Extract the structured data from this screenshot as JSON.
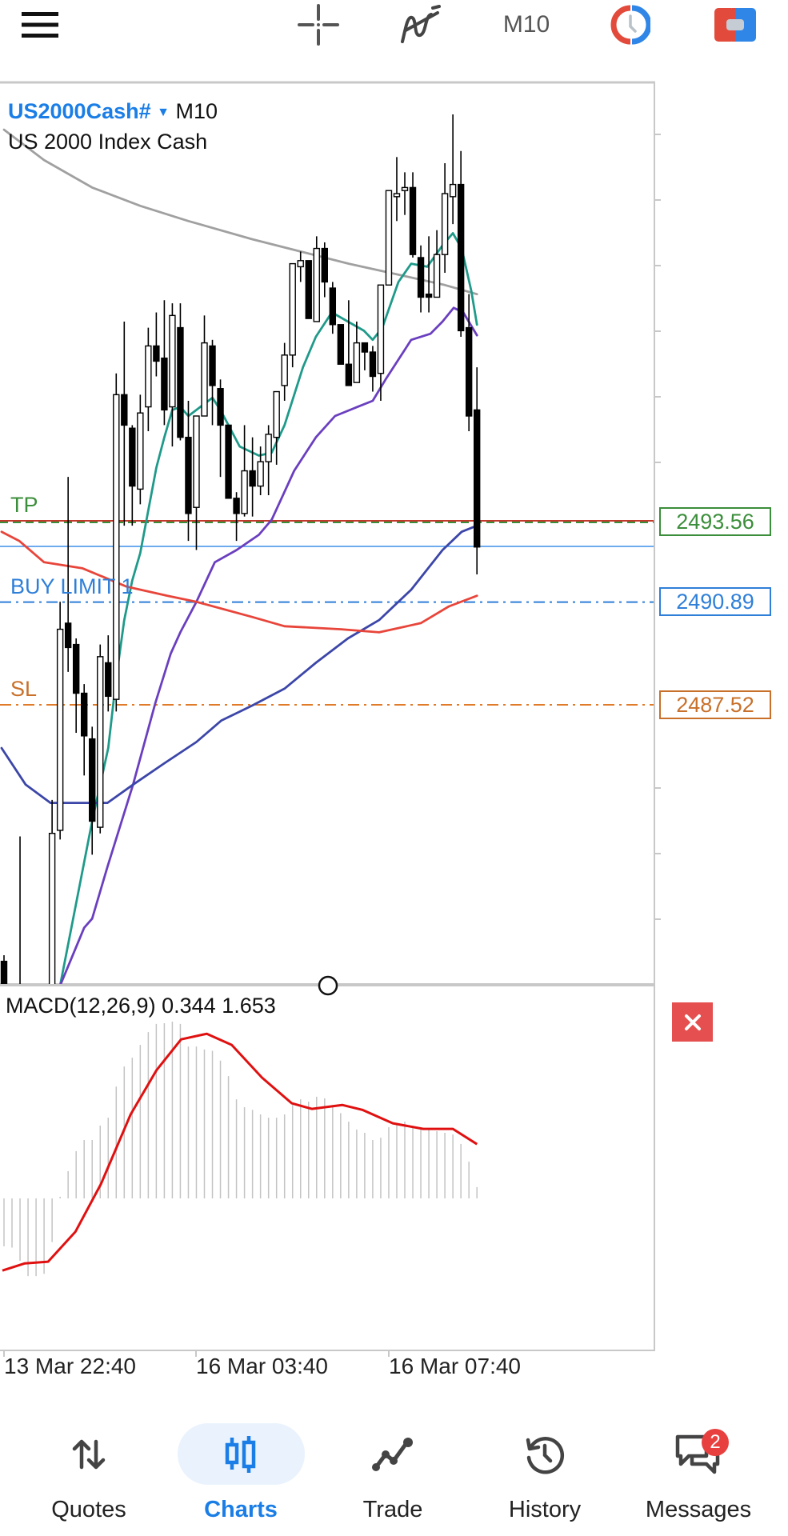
{
  "topbar": {
    "menu_icon": "hamburger-icon",
    "crosshair_icon": "crosshair-icon",
    "indicators_icon": "indicators-icon",
    "timeframe": "M10",
    "objects_icon": "clock-objects-icon",
    "trade_icon": "one-click-trade-icon"
  },
  "chart": {
    "symbol": "US2000Cash#",
    "timeframe": "M10",
    "description": "US 2000 Index Cash",
    "levels": [
      {
        "label": "TP",
        "price": "2493.56",
        "color": "#3b8e3b",
        "line_color": "#c0392b"
      },
      {
        "label": "BUY LIMIT 1",
        "price": "2490.89",
        "color": "#2f7fd8",
        "line_color": "#2f7fd8"
      },
      {
        "label": "SL",
        "price": "2487.52",
        "color": "#c8702a",
        "line_color": "#e07b2a"
      }
    ],
    "time_labels": [
      "13 Mar 22:40",
      "16 Mar 03:40",
      "16 Mar 07:40"
    ],
    "macd": {
      "label": "MACD(12,26,9)",
      "value": "0.344",
      "signal": "1.653"
    },
    "close_icon": "close-icon"
  },
  "nav": {
    "items": [
      {
        "label": "Quotes",
        "icon": "up-down-arrows-icon",
        "active": false
      },
      {
        "label": "Charts",
        "icon": "candlesticks-icon",
        "active": true
      },
      {
        "label": "Trade",
        "icon": "trade-line-icon",
        "active": false
      },
      {
        "label": "History",
        "icon": "history-icon",
        "active": false
      },
      {
        "label": "Messages",
        "icon": "messages-icon",
        "active": false
      }
    ],
    "messages_badge": "2",
    "active_color": "#1a7ee6"
  },
  "chart_data": {
    "type": "candlestick",
    "symbol": "US2000Cash#",
    "timeframe": "M10",
    "bid_line": 2492.72,
    "colors": {
      "bull": "#ffffff",
      "bear": "#000000",
      "bid_line": "#3d8fe8"
    },
    "candles": [
      [
        2479.1,
        2479.3,
        2477.8,
        2478.3
      ],
      [
        2477.0,
        2477.5,
        2476.0,
        2476.5
      ],
      [
        2478.0,
        2483.2,
        2477.0,
        2477.5
      ],
      [
        2477.0,
        2477.5,
        2476.0,
        2476.5
      ],
      [
        2477.0,
        2477.5,
        2476.0,
        2476.5
      ],
      [
        2477.0,
        2477.4,
        2476.0,
        2476.4
      ],
      [
        2477.0,
        2484.4,
        2476.5,
        2483.3
      ],
      [
        2483.4,
        2490.9,
        2483.1,
        2490.0
      ],
      [
        2490.2,
        2495.0,
        2488.6,
        2489.4
      ],
      [
        2489.5,
        2489.7,
        2486.6,
        2487.9
      ],
      [
        2487.9,
        2488.2,
        2485.2,
        2486.5
      ],
      [
        2486.4,
        2486.8,
        2482.6,
        2483.7
      ],
      [
        2483.5,
        2489.5,
        2483.3,
        2489.1
      ],
      [
        2488.9,
        2489.8,
        2487.3,
        2487.8
      ],
      [
        2487.7,
        2498.4,
        2487.3,
        2497.7
      ],
      [
        2497.7,
        2500.1,
        2493.4,
        2496.7
      ],
      [
        2496.6,
        2496.7,
        2493.4,
        2494.7
      ],
      [
        2494.6,
        2497.7,
        2494.1,
        2497.1
      ],
      [
        2497.3,
        2499.9,
        2496.5,
        2499.3
      ],
      [
        2499.3,
        2500.4,
        2498.3,
        2498.8
      ],
      [
        2498.9,
        2500.8,
        2496.7,
        2497.2
      ],
      [
        2497.3,
        2500.7,
        2496.0,
        2500.3
      ],
      [
        2499.9,
        2500.7,
        2496.2,
        2496.3
      ],
      [
        2496.3,
        2497.5,
        2492.9,
        2493.8
      ],
      [
        2494.0,
        2497.0,
        2492.6,
        2497.0
      ],
      [
        2497.0,
        2500.3,
        2497.0,
        2499.4
      ],
      [
        2499.3,
        2499.5,
        2496.7,
        2498.0
      ],
      [
        2497.9,
        2498.2,
        2495.0,
        2496.7
      ],
      [
        2496.7,
        2496.7,
        2494.3,
        2494.3
      ],
      [
        2494.3,
        2494.5,
        2492.9,
        2493.8
      ],
      [
        2493.8,
        2496.7,
        2493.7,
        2495.2
      ],
      [
        2495.2,
        2496.3,
        2493.7,
        2494.7
      ],
      [
        2494.7,
        2496.0,
        2494.4,
        2495.5
      ],
      [
        2495.5,
        2496.7,
        2494.4,
        2496.4
      ],
      [
        2496.3,
        2497.8,
        2495.4,
        2497.8
      ],
      [
        2498.0,
        2499.4,
        2497.5,
        2499.0
      ],
      [
        2499.0,
        2502.0,
        2498.6,
        2502.0
      ],
      [
        2501.9,
        2502.4,
        2501.4,
        2502.1
      ],
      [
        2502.1,
        2502.1,
        2500.2,
        2500.2
      ],
      [
        2500.1,
        2502.9,
        2500.1,
        2502.5
      ],
      [
        2502.5,
        2502.7,
        2500.9,
        2501.4
      ],
      [
        2501.2,
        2501.4,
        2499.7,
        2500.0
      ],
      [
        2500.0,
        2500.0,
        2498.7,
        2498.7
      ],
      [
        2498.7,
        2500.8,
        2498.0,
        2498.0
      ],
      [
        2498.1,
        2500.1,
        2498.1,
        2499.4
      ],
      [
        2499.4,
        2499.4,
        2498.5,
        2499.1
      ],
      [
        2499.1,
        2499.3,
        2497.8,
        2498.3
      ],
      [
        2498.4,
        2501.3,
        2497.5,
        2501.3
      ],
      [
        2501.3,
        2504.4,
        2501.3,
        2504.4
      ],
      [
        2504.2,
        2505.5,
        2503.4,
        2504.3
      ],
      [
        2504.4,
        2505.0,
        2503.6,
        2504.5
      ],
      [
        2504.5,
        2505.0,
        2502.2,
        2502.3
      ],
      [
        2502.2,
        2502.6,
        2500.4,
        2500.9
      ],
      [
        2501.0,
        2502.9,
        2500.4,
        2500.9
      ],
      [
        2500.9,
        2503.1,
        2500.9,
        2502.3
      ],
      [
        2502.3,
        2505.3,
        2501.7,
        2504.3
      ],
      [
        2504.2,
        2506.9,
        2503.3,
        2504.6
      ],
      [
        2504.6,
        2505.7,
        2499.6,
        2499.8
      ],
      [
        2499.9,
        2501.0,
        2496.5,
        2497.0
      ],
      [
        2497.2,
        2498.6,
        2491.8,
        2492.7
      ]
    ],
    "overlays": [
      {
        "color": "#a0a0a0",
        "points": [
          [
            0,
            2506.4
          ],
          [
            5,
            2505.4
          ],
          [
            11,
            2504.5
          ],
          [
            17,
            2503.9
          ],
          [
            23,
            2503.4
          ],
          [
            31,
            2502.8
          ],
          [
            37,
            2502.4
          ],
          [
            43,
            2502.0
          ],
          [
            49,
            2501.65
          ],
          [
            55,
            2501.3
          ],
          [
            59,
            2501.0
          ]
        ]
      },
      {
        "color": "#1f9a8a",
        "points": [
          [
            7,
            2478.3
          ],
          [
            11,
            2483.7
          ],
          [
            13,
            2486.1
          ],
          [
            14,
            2488.4
          ],
          [
            15,
            2490.3
          ],
          [
            16,
            2491.6
          ],
          [
            17,
            2492.5
          ],
          [
            19,
            2495.3
          ],
          [
            20,
            2496.3
          ],
          [
            21,
            2497.2
          ],
          [
            22,
            2497.3
          ],
          [
            23,
            2497.0
          ],
          [
            26,
            2497.6
          ],
          [
            27,
            2497.2
          ],
          [
            29.4,
            2496.0
          ],
          [
            31.8,
            2495.7
          ],
          [
            33.4,
            2495.8
          ],
          [
            35,
            2496.7
          ],
          [
            37.3,
            2498.6
          ],
          [
            38.9,
            2499.6
          ],
          [
            40.9,
            2500.4
          ],
          [
            42.9,
            2500.1
          ],
          [
            44.9,
            2499.8
          ],
          [
            46,
            2499.5
          ],
          [
            47.2,
            2499.9
          ],
          [
            49.2,
            2501.4
          ],
          [
            50.8,
            2502.0
          ],
          [
            52.8,
            2501.9
          ],
          [
            54.7,
            2502.6
          ],
          [
            56,
            2503.0
          ],
          [
            57.1,
            2502.5
          ],
          [
            58.3,
            2501.1
          ],
          [
            59,
            2500.0
          ]
        ]
      },
      {
        "color": "#6a3fbf",
        "points": [
          [
            7,
            2478.3
          ],
          [
            10,
            2480.2
          ],
          [
            11,
            2480.5
          ],
          [
            12.9,
            2482.2
          ],
          [
            16.1,
            2484.9
          ],
          [
            18.9,
            2487.6
          ],
          [
            20.8,
            2489.2
          ],
          [
            22,
            2489.9
          ],
          [
            24,
            2490.9
          ],
          [
            26.3,
            2492.2
          ],
          [
            29,
            2492.6
          ],
          [
            31.8,
            2493.1
          ],
          [
            33.4,
            2493.6
          ],
          [
            36.2,
            2495.2
          ],
          [
            38.9,
            2496.3
          ],
          [
            41.3,
            2497.0
          ],
          [
            44.1,
            2497.3
          ],
          [
            46,
            2497.5
          ],
          [
            47.6,
            2498.2
          ],
          [
            50.8,
            2499.5
          ],
          [
            53.2,
            2499.7
          ],
          [
            54.7,
            2500.1
          ],
          [
            56.1,
            2500.55
          ],
          [
            57.3,
            2500.4
          ],
          [
            59,
            2499.65
          ]
        ]
      },
      {
        "color": "#3b46a8",
        "points": [
          [
            -0.3,
            2486.1
          ],
          [
            2.7,
            2484.9
          ],
          [
            5.8,
            2484.3
          ],
          [
            12.9,
            2484.3
          ],
          [
            16.1,
            2484.9
          ],
          [
            20,
            2485.6
          ],
          [
            24,
            2486.3
          ],
          [
            27.1,
            2487.0
          ],
          [
            31,
            2487.5
          ],
          [
            35,
            2488.05
          ],
          [
            38.9,
            2488.9
          ],
          [
            42.9,
            2489.7
          ],
          [
            46.8,
            2490.3
          ],
          [
            50.8,
            2491.3
          ],
          [
            54.7,
            2492.6
          ],
          [
            57.1,
            2493.2
          ],
          [
            59,
            2493.4
          ]
        ]
      },
      {
        "color": "#e8453a",
        "points": [
          [
            -0.3,
            2493.2
          ],
          [
            1.9,
            2492.9
          ],
          [
            5,
            2492.2
          ],
          [
            9.8,
            2492.0
          ],
          [
            15.3,
            2491.4
          ],
          [
            20.4,
            2491.1
          ],
          [
            24,
            2490.9
          ],
          [
            31,
            2490.4
          ],
          [
            35,
            2490.1
          ],
          [
            42.1,
            2490.0
          ],
          [
            46.8,
            2489.9
          ],
          [
            52,
            2490.2
          ],
          [
            55.5,
            2490.75
          ],
          [
            59,
            2491.1
          ]
        ]
      }
    ],
    "macd": {
      "params": "12,26,9",
      "histogram_color": "#c4c4c4",
      "signal_color": "#e01010",
      "histogram": [
        -1.46,
        -1.5,
        -1.9,
        -2.37,
        -2.37,
        -2.3,
        -1.33,
        0.05,
        0.83,
        1.44,
        1.78,
        1.78,
        2.22,
        2.46,
        3.41,
        4.02,
        4.29,
        4.68,
        5.07,
        5.32,
        5.34,
        5.39,
        5.32,
        4.63,
        4.63,
        4.54,
        4.5,
        4.2,
        3.73,
        3.02,
        2.78,
        2.7,
        2.56,
        2.46,
        2.46,
        2.56,
        2.85,
        3.02,
        2.95,
        3.1,
        3.05,
        2.85,
        2.6,
        2.34,
        2.1,
        2.0,
        1.78,
        1.85,
        2.17,
        2.3,
        2.34,
        2.22,
        2.17,
        2.12,
        2.05,
        2.0,
        1.95,
        1.66,
        1.12,
        0.344
      ],
      "signal": [
        [
          -0.2,
          -2.2
        ],
        [
          2.6,
          -1.98
        ],
        [
          5.5,
          -1.93
        ],
        [
          8.9,
          -1.02
        ],
        [
          12.1,
          0.44
        ],
        [
          15.8,
          2.56
        ],
        [
          19,
          3.9
        ],
        [
          22.1,
          4.85
        ],
        [
          25.3,
          5.02
        ],
        [
          28.4,
          4.68
        ],
        [
          32.2,
          3.68
        ],
        [
          35.9,
          2.9
        ],
        [
          38.4,
          2.73
        ],
        [
          42.2,
          2.85
        ],
        [
          44.7,
          2.7
        ],
        [
          48.5,
          2.29
        ],
        [
          52.3,
          2.12
        ],
        [
          56,
          2.12
        ],
        [
          59,
          1.653
        ]
      ]
    }
  }
}
